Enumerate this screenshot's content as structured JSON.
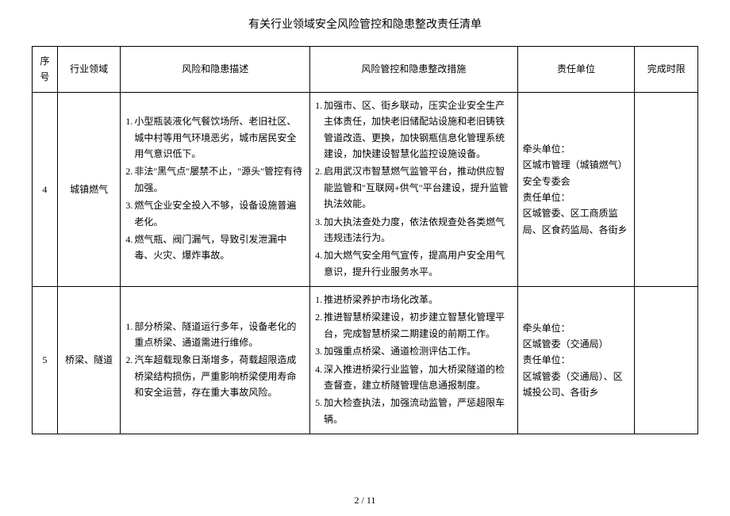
{
  "title": "有关行业领域安全风险管控和隐患整改责任清单",
  "columns": {
    "seq": "序号",
    "domain": "行业领域",
    "risk": "风险和隐患描述",
    "measure": "风险管控和隐患整改措施",
    "unit": "责任单位",
    "deadline": "完成时限"
  },
  "rows": [
    {
      "seq": "4",
      "domain": "城镇燃气",
      "risks": [
        "小型瓶装液化气餐饮场所、老旧社区、城中村等用气环境恶劣，城市居民安全用气意识低下。",
        "非法\"黑气点\"屡禁不止，\"源头\"管控有待加强。",
        "燃气企业安全投入不够，设备设施普遍老化。",
        "燃气瓶、阀门漏气，导致引发泄漏中毒、火灾、爆炸事故。"
      ],
      "measures": [
        "加强市、区、街乡联动，压实企业安全生产主体责任，加快老旧储配站设施和老旧铸铁管道改造、更换，加快钢瓶信息化管理系统建设，加快建设智慧化监控设施设备。",
        "启用武汉市智慧燃气监管平台，推动供应智能监管和\"互联网+供气\"平台建设，提升监管执法效能。",
        "加大执法查处力度，依法依规查处各类燃气违规违法行为。",
        "加大燃气安全用气宣传，提高用户安全用气意识，提升行业服务水平。"
      ],
      "unit": "牵头单位：\n区城市管理（城镇燃气）安全专委会\n责任单位：\n区城管委、区工商质监局、区食药监局、各街乡",
      "deadline": ""
    },
    {
      "seq": "5",
      "domain": "桥梁、隧道",
      "risks": [
        "部分桥梁、隧道运行多年，设备老化的重点桥梁、通道需进行维修。",
        "汽车超载现象日渐增多，荷载超限造成桥梁结构损伤，严重影响桥梁使用寿命和安全运营，存在重大事故风险。"
      ],
      "measures": [
        "推进桥梁养护市场化改革。",
        "推进智慧桥梁建设，初步建立智慧化管理平台，完成智慧桥梁二期建设的前期工作。",
        "加强重点桥梁、通道检测评估工作。",
        "深入推进桥梁行业监管，加大桥梁隧道的检查督查，建立桥隧管理信息通报制度。",
        "加大检查执法，加强流动监管，严惩超限车辆。"
      ],
      "unit": "牵头单位：\n区城管委（交通局）\n责任单位：\n区城管委（交通局）、区城投公司、各街乡",
      "deadline": ""
    }
  ],
  "footer": "2 / 11"
}
